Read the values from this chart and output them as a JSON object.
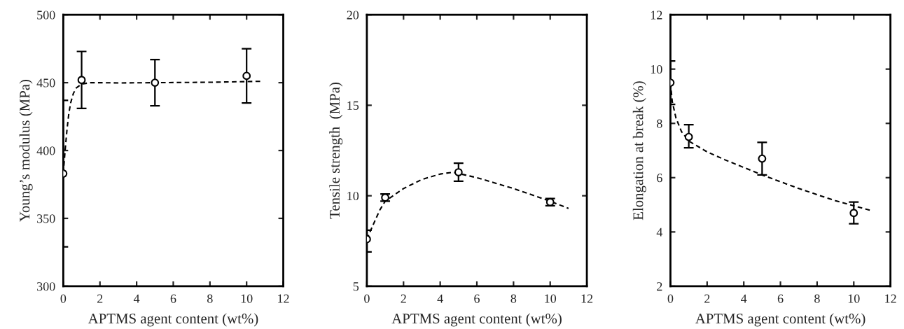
{
  "chart_data": [
    {
      "type": "scatter",
      "xlabel": "APTMS agent content (wt%)",
      "ylabel": "Young’s modulus (MPa)",
      "xlim": [
        0,
        12
      ],
      "xticks": [
        0,
        2,
        4,
        6,
        8,
        10,
        12
      ],
      "ylim": [
        300,
        500
      ],
      "yticks": [
        300,
        350,
        400,
        450,
        500
      ],
      "series": [
        {
          "color": "#000000",
          "marker": "circle",
          "x": [
            0,
            1,
            5,
            10
          ],
          "values": [
            383,
            452,
            450,
            455
          ],
          "errors": [
            [
              329,
              437
            ],
            [
              431,
              473
            ],
            [
              433,
              467
            ],
            [
              435,
              475
            ]
          ]
        },
        {
          "type": "line",
          "color": "#000000",
          "line_style": "dashed",
          "x": [
            0,
            0.1,
            0.2,
            0.3,
            0.4,
            0.55,
            0.7,
            1,
            1.5,
            2,
            3,
            5,
            8,
            10.8
          ],
          "values": [
            383,
            400,
            415,
            427,
            435,
            442,
            446,
            449,
            450,
            450,
            449.8,
            450,
            450.3,
            451
          ]
        }
      ]
    },
    {
      "type": "scatter",
      "xlabel": "APTMS agent content (wt%)",
      "ylabel": "Tensile strength  (MPa)",
      "xlim": [
        0,
        12
      ],
      "xticks": [
        0,
        2,
        4,
        6,
        8,
        10,
        12
      ],
      "ylim": [
        5,
        20
      ],
      "yticks": [
        5,
        10,
        15,
        20
      ],
      "series": [
        {
          "color": "#000000",
          "marker": "circle",
          "x": [
            0,
            1,
            5,
            10
          ],
          "values": [
            7.6,
            9.9,
            11.3,
            9.65
          ],
          "errors": [
            [
              6.9,
              8.1
            ],
            [
              9.7,
              10.1
            ],
            [
              10.8,
              11.8
            ],
            [
              9.45,
              9.85
            ]
          ]
        },
        {
          "type": "line",
          "color": "#000000",
          "line_style": "dashed",
          "x": [
            0,
            0.3,
            0.7,
            1,
            2,
            3,
            4,
            4.7,
            6,
            8,
            10,
            11
          ],
          "values": [
            7.6,
            8.3,
            9.2,
            9.7,
            10.4,
            10.9,
            11.2,
            11.3,
            11.0,
            10.4,
            9.7,
            9.3
          ]
        }
      ]
    },
    {
      "type": "scatter",
      "xlabel": "APTMS agent content (wt%)",
      "ylabel": "Elongation at break (%)",
      "xlim": [
        0,
        12
      ],
      "xticks": [
        0,
        2,
        4,
        6,
        8,
        10,
        12
      ],
      "ylim": [
        2,
        12
      ],
      "yticks": [
        2,
        4,
        6,
        8,
        10,
        12
      ],
      "series": [
        {
          "color": "#000000",
          "marker": "circle",
          "x": [
            0,
            1,
            5,
            10
          ],
          "values": [
            9.5,
            7.5,
            6.7,
            4.7
          ],
          "errors": [
            [
              8.7,
              10.3
            ],
            [
              7.1,
              7.95
            ],
            [
              6.1,
              7.3
            ],
            [
              4.3,
              5.1
            ]
          ]
        },
        {
          "type": "line",
          "color": "#000000",
          "line_style": "dashed",
          "x": [
            0,
            0.1,
            0.3,
            0.6,
            1,
            2,
            3,
            5,
            7,
            9,
            10.9
          ],
          "values": [
            9.5,
            8.8,
            8.2,
            7.7,
            7.35,
            6.95,
            6.65,
            6.1,
            5.6,
            5.15,
            4.8
          ]
        }
      ]
    }
  ]
}
